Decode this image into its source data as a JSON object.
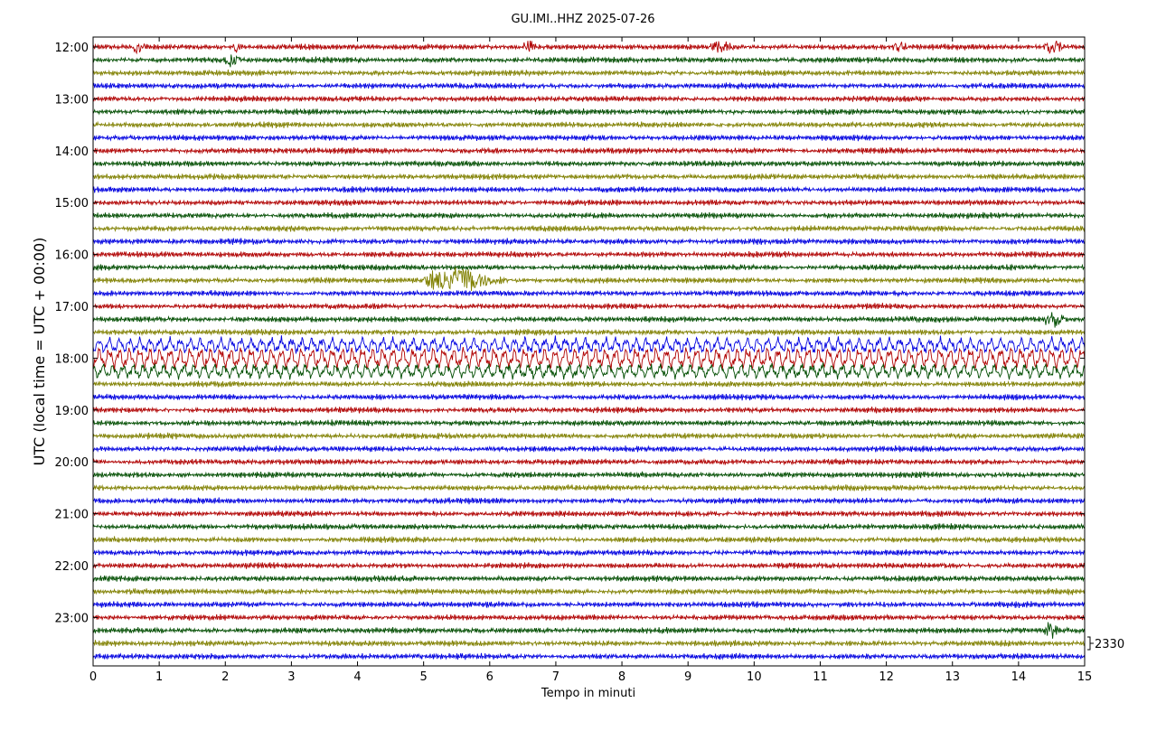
{
  "chart_data": {
    "type": "line",
    "title": "GU.IMI..HHZ 2025-07-26",
    "xlabel": "Tempo in minuti",
    "ylabel": "UTC (local time = UTC + 00:00)",
    "xlim": [
      0,
      15
    ],
    "x_ticks": [
      "0",
      "1",
      "2",
      "3",
      "4",
      "5",
      "6",
      "7",
      "8",
      "9",
      "10",
      "11",
      "12",
      "13",
      "14",
      "15"
    ],
    "y_ticks": [
      "12:00",
      "13:00",
      "14:00",
      "15:00",
      "16:00",
      "17:00",
      "18:00",
      "19:00",
      "20:00",
      "21:00",
      "22:00",
      "23:00"
    ],
    "rows_per_hour": 4,
    "minutes_per_row": 15,
    "series_colors": [
      "#b00000",
      "#004d00",
      "#808000",
      "#0000e0"
    ],
    "scale_label": "2330",
    "grid": false,
    "events": [
      {
        "hour": "12:00",
        "row": 0,
        "minute_start": 0.6,
        "minute_end": 0.9,
        "strength": 1.6
      },
      {
        "hour": "12:00",
        "row": 0,
        "minute_start": 2.1,
        "minute_end": 2.3,
        "strength": 2.0
      },
      {
        "hour": "12:00",
        "row": 0,
        "minute_start": 6.5,
        "minute_end": 6.8,
        "strength": 1.6
      },
      {
        "hour": "12:00",
        "row": 0,
        "minute_start": 9.3,
        "minute_end": 9.8,
        "strength": 1.4
      },
      {
        "hour": "12:00",
        "row": 0,
        "minute_start": 12.1,
        "minute_end": 12.4,
        "strength": 1.6
      },
      {
        "hour": "12:00",
        "row": 0,
        "minute_start": 14.4,
        "minute_end": 14.8,
        "strength": 1.6
      },
      {
        "hour": "12:00",
        "row": 1,
        "minute_start": 2.0,
        "minute_end": 2.3,
        "strength": 2.4
      },
      {
        "hour": "16:00",
        "row": 2,
        "minute_start": 5.0,
        "minute_end": 6.6,
        "strength": 3.2
      },
      {
        "hour": "17:00",
        "row": 1,
        "minute_start": 14.4,
        "minute_end": 14.8,
        "strength": 2.0
      },
      {
        "hour": "17:00",
        "row": 3,
        "minute_start": 0.0,
        "minute_end": 15.0,
        "strength": 2.4
      },
      {
        "hour": "18:00",
        "row": 0,
        "minute_start": 0.0,
        "minute_end": 15.0,
        "strength": 3.4
      },
      {
        "hour": "18:00",
        "row": 1,
        "minute_start": 0.0,
        "minute_end": 15.0,
        "strength": 2.2
      },
      {
        "hour": "23:00",
        "row": 1,
        "minute_start": 14.4,
        "minute_end": 14.7,
        "strength": 1.8
      }
    ]
  }
}
